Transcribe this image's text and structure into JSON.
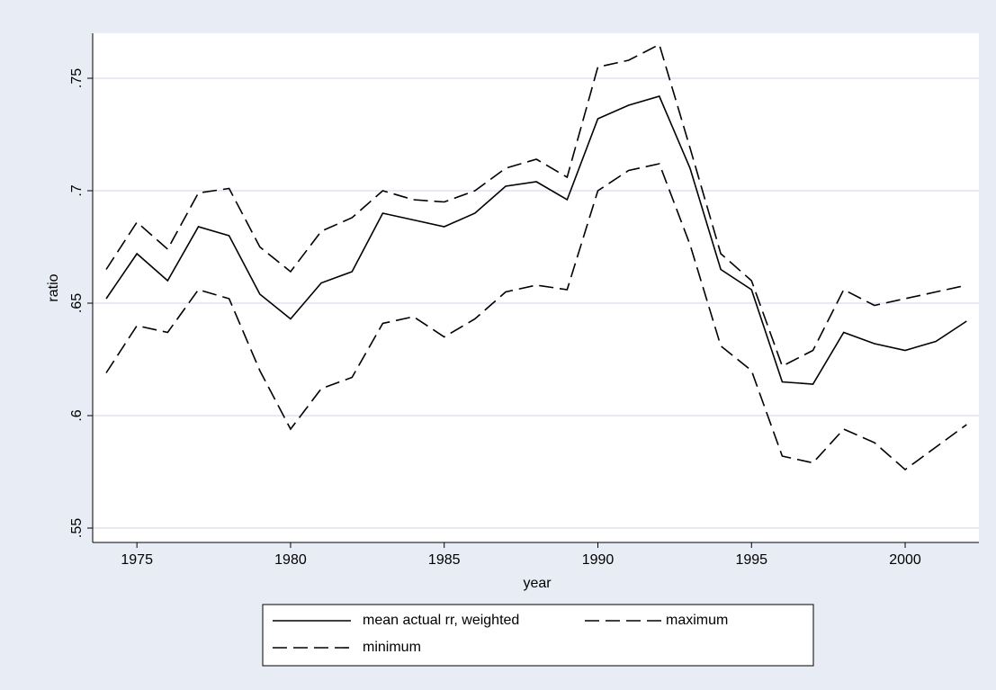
{
  "chart_data": {
    "type": "line",
    "x_label": "year",
    "y_label": "ratio",
    "x": [
      1974,
      1975,
      1976,
      1977,
      1978,
      1979,
      1980,
      1981,
      1982,
      1983,
      1984,
      1985,
      1986,
      1987,
      1988,
      1989,
      1990,
      1991,
      1992,
      1993,
      1994,
      1995,
      1996,
      1997,
      1998,
      1999,
      2000,
      2001,
      2002
    ],
    "series": [
      {
        "name": "mean actual rr, weighted",
        "color": "#000000",
        "dash": "solid",
        "values": [
          0.652,
          0.672,
          0.66,
          0.684,
          0.68,
          0.654,
          0.643,
          0.659,
          0.664,
          0.69,
          0.687,
          0.684,
          0.69,
          0.702,
          0.704,
          0.696,
          0.732,
          0.738,
          0.742,
          0.71,
          0.665,
          0.656,
          0.615,
          0.614,
          0.637,
          0.632,
          0.629,
          0.633,
          0.642
        ]
      },
      {
        "name": "maximum",
        "color": "#000000",
        "dash": "dashed",
        "values": [
          0.665,
          0.686,
          0.674,
          0.699,
          0.701,
          0.675,
          0.664,
          0.682,
          0.688,
          0.7,
          0.696,
          0.695,
          0.7,
          0.71,
          0.714,
          0.706,
          0.755,
          0.758,
          0.765,
          0.719,
          0.672,
          0.66,
          0.622,
          0.629,
          0.656,
          0.649,
          0.652,
          0.655,
          0.658
        ]
      },
      {
        "name": "minimum",
        "color": "#000000",
        "dash": "dashed",
        "values": [
          0.619,
          0.64,
          0.637,
          0.656,
          0.652,
          0.62,
          0.594,
          0.612,
          0.617,
          0.641,
          0.644,
          0.635,
          0.643,
          0.655,
          0.658,
          0.656,
          0.7,
          0.709,
          0.712,
          0.676,
          0.631,
          0.62,
          0.582,
          0.579,
          0.594,
          0.588,
          0.576,
          0.586,
          0.596
        ]
      }
    ],
    "xlim": [
      1973.56,
      2002.4
    ],
    "xticks": [
      1975,
      1980,
      1985,
      1990,
      1995,
      2000
    ],
    "ylim": [
      0.5436,
      0.77
    ],
    "yticks": [
      {
        "value": 0.55,
        "label": ".55"
      },
      {
        "value": 0.6,
        "label": ".6"
      },
      {
        "value": 0.65,
        "label": ".65"
      },
      {
        "value": 0.7,
        "label": ".7"
      },
      {
        "value": 0.75,
        "label": ".75"
      }
    ],
    "grid": true,
    "legend": "bottom"
  }
}
